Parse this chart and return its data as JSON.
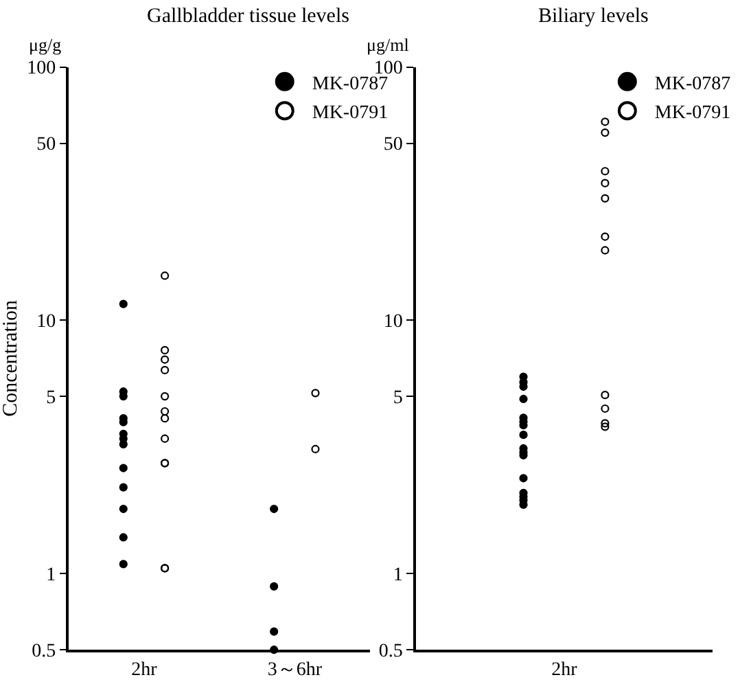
{
  "chart_data": [
    {
      "type": "scatter",
      "title": "Gallbladder tissue levels",
      "ylabel": "Concentration",
      "annotations": [
        "μg/g"
      ],
      "log": "y",
      "grid": false,
      "legend": "top right",
      "categories": [
        "2hr",
        "3～6hr"
      ],
      "ylim": [
        0.5,
        100
      ],
      "yticks": [
        0.5,
        1,
        5,
        10,
        50,
        100
      ],
      "series": [
        {
          "name": "MK-0787",
          "color": "#000000",
          "marker": "circle",
          "x": [
            "2hr",
            "2hr",
            "2hr",
            "2hr",
            "2hr",
            "2hr",
            "2hr",
            "2hr",
            "2hr",
            "2hr",
            "2hr",
            "2hr",
            "2hr",
            "3～6hr",
            "3～6hr",
            "3～6hr",
            "3～6hr"
          ],
          "values": [
            11.6,
            5.23,
            5.01,
            4.1,
            3.96,
            3.56,
            3.41,
            3.24,
            2.61,
            2.19,
            1.8,
            1.39,
            1.09,
            1.8,
            0.89,
            0.59,
            0.5
          ]
        },
        {
          "name": "MK-0791",
          "color": "#000000",
          "marker": "circle-open",
          "x": [
            "2hr",
            "2hr",
            "2hr",
            "2hr",
            "2hr",
            "2hr",
            "2hr",
            "2hr",
            "2hr",
            "2hr",
            "2hr",
            "2hr",
            "3～6hr",
            "3～6hr"
          ],
          "values": [
            15.0,
            7.62,
            7.0,
            6.36,
            5.01,
            4.37,
            4.1,
            3.41,
            2.73,
            2.73,
            1.05,
            1.05,
            5.16,
            3.1
          ]
        }
      ]
    },
    {
      "type": "scatter",
      "title": "Biliary levels",
      "annotations": [
        "μg/ml"
      ],
      "log": "y",
      "grid": false,
      "legend": "top right",
      "categories": [
        "2hr"
      ],
      "ylim": [
        0.5,
        100
      ],
      "yticks": [
        0.5,
        1,
        5,
        10,
        50,
        100
      ],
      "series": [
        {
          "name": "MK-0787",
          "color": "#000000",
          "marker": "circle",
          "x": [
            "2hr",
            "2hr",
            "2hr",
            "2hr",
            "2hr",
            "2hr",
            "2hr",
            "2hr",
            "2hr",
            "2hr",
            "2hr",
            "2hr",
            "2hr",
            "2hr",
            "2hr",
            "2hr"
          ],
          "values": [
            5.99,
            5.7,
            5.47,
            4.89,
            4.12,
            3.98,
            3.85,
            3.53,
            3.12,
            3.01,
            2.93,
            2.38,
            2.08,
            2.01,
            1.95,
            1.87
          ]
        },
        {
          "name": "MK-0791",
          "color": "#000000",
          "marker": "circle-open",
          "x": [
            "2hr",
            "2hr",
            "2hr",
            "2hr",
            "2hr",
            "2hr",
            "2hr",
            "2hr",
            "2hr",
            "2hr",
            "2hr"
          ],
          "values": [
            60.8,
            55.1,
            38.8,
            34.8,
            30.3,
            21.4,
            18.9,
            5.07,
            4.48,
            3.92,
            3.8
          ]
        }
      ]
    }
  ]
}
